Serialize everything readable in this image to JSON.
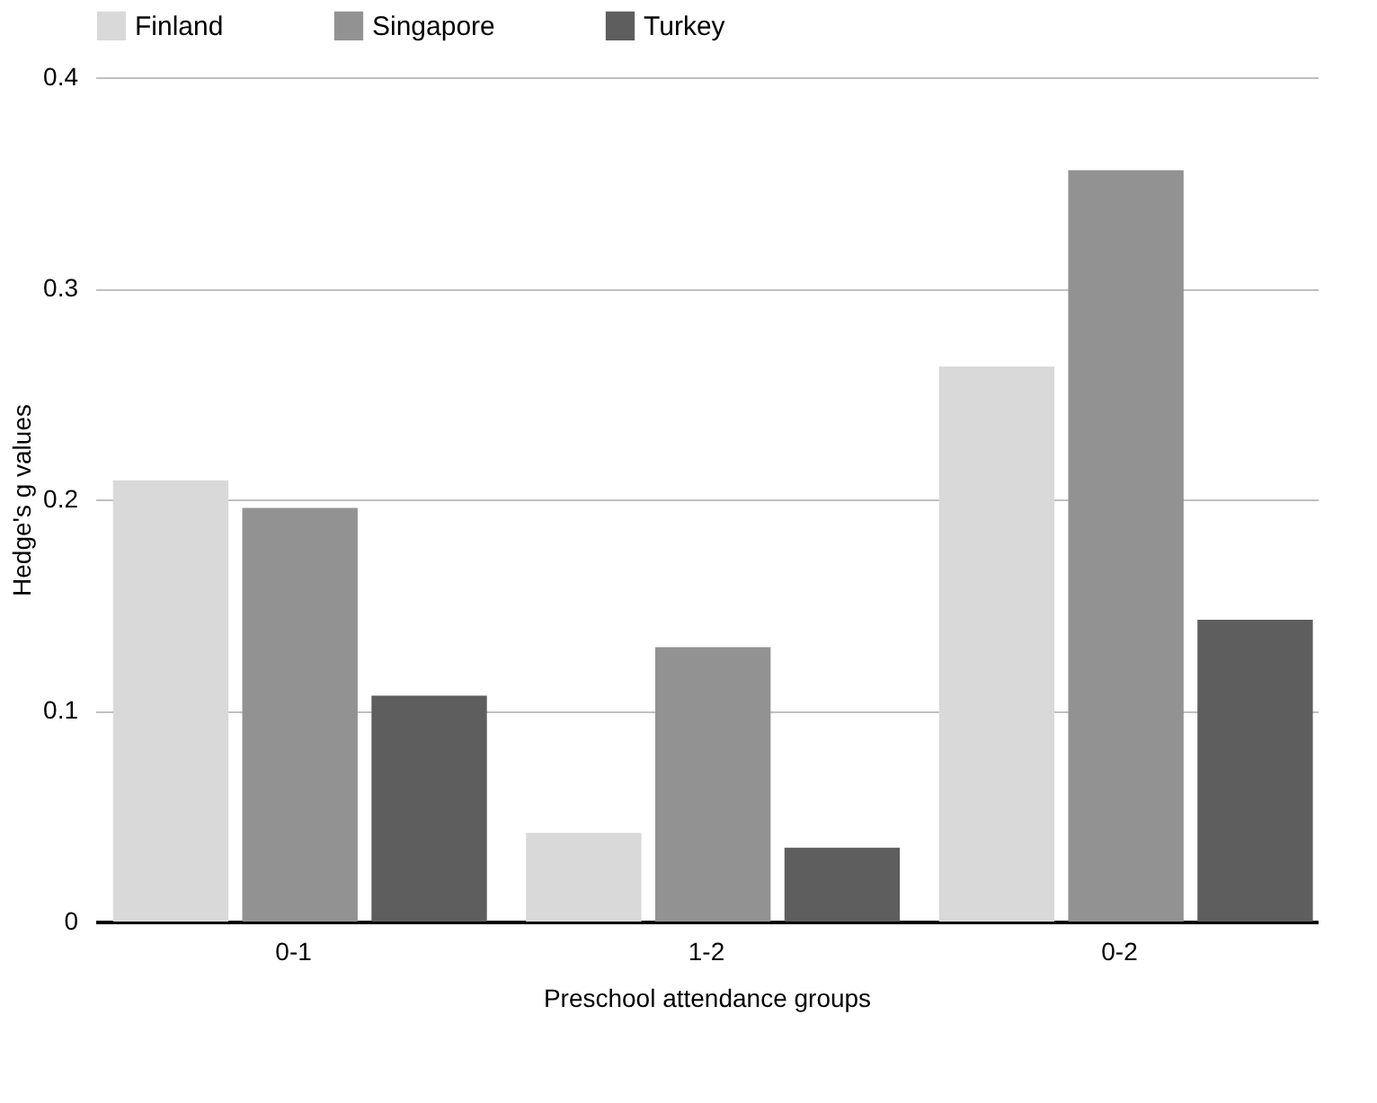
{
  "chart_data": {
    "type": "bar",
    "xlabel": "Preschool attendance groups",
    "ylabel": "Hedge's g values",
    "categories": [
      "0-1",
      "1-2",
      "0-2"
    ],
    "series": [
      {
        "name": "Finland",
        "color": "#d9d9d9",
        "values": [
          0.209,
          0.042,
          0.263
        ]
      },
      {
        "name": "Singapore",
        "color": "#929292",
        "values": [
          0.196,
          0.13,
          0.356
        ]
      },
      {
        "name": "Turkey",
        "color": "#5e5e5e",
        "values": [
          0.107,
          0.035,
          0.143
        ]
      }
    ],
    "ylim": [
      0,
      0.4
    ],
    "yticks": [
      0,
      0.1,
      0.2,
      0.3,
      0.4
    ],
    "grid": "y",
    "legend": "top"
  }
}
